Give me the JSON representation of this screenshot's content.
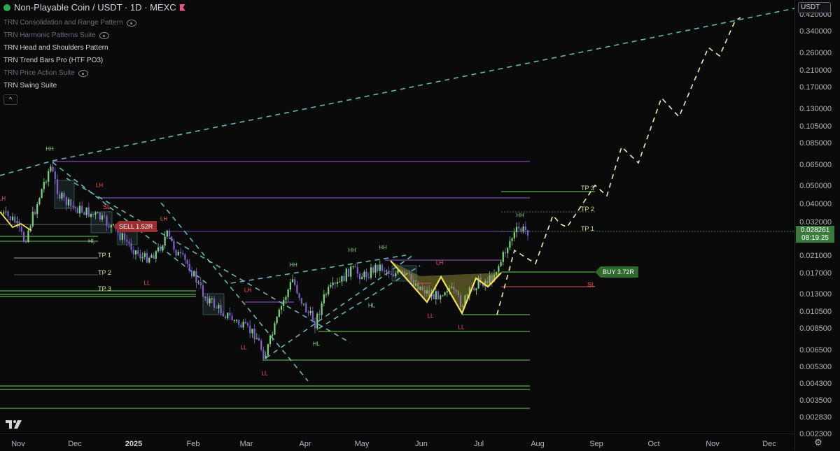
{
  "symbol": {
    "title": "Non-Playable Coin / USDT · 1D · MEXC",
    "status_color": "#2ca855"
  },
  "indicators": [
    {
      "label": "TRN Consolidation and Range Pattern",
      "hidden": true
    },
    {
      "label": "TRN Harmonic Patterns Suite",
      "hidden": true
    },
    {
      "label": "TRN Head and Shoulders Pattern",
      "hidden": false
    },
    {
      "label": "TRN Trend Bars Pro (HTF PO3)",
      "hidden": false
    },
    {
      "label": "TRN Price Action Suite",
      "hidden": true
    },
    {
      "label": "TRN Swing Suite",
      "hidden": false
    }
  ],
  "collapse_icon": "chevron-up-icon",
  "price_axis": {
    "currency": "USDT",
    "ticks": [
      "0.420000",
      "0.340000",
      "0.260000",
      "0.210000",
      "0.170000",
      "0.130000",
      "0.105000",
      "0.085000",
      "0.065000",
      "0.050000",
      "0.040000",
      "0.032000",
      "0.021000",
      "0.017000",
      "0.013000",
      "0.010500",
      "0.008500",
      "0.006500",
      "0.005300",
      "0.004300",
      "0.003500",
      "0.002830",
      "0.002300"
    ],
    "last_price": "0.028261",
    "countdown": "08:19:25",
    "last_price_color": "#3a7a3c"
  },
  "time_axis": {
    "labels": [
      {
        "text": "Nov",
        "bold": false
      },
      {
        "text": "Dec",
        "bold": false
      },
      {
        "text": "2025",
        "bold": true
      },
      {
        "text": "Feb",
        "bold": false
      },
      {
        "text": "Mar",
        "bold": false
      },
      {
        "text": "Apr",
        "bold": false
      },
      {
        "text": "May",
        "bold": false
      },
      {
        "text": "Jun",
        "bold": false
      },
      {
        "text": "Jul",
        "bold": false
      },
      {
        "text": "Aug",
        "bold": false
      },
      {
        "text": "Sep",
        "bold": false
      },
      {
        "text": "Oct",
        "bold": false
      },
      {
        "text": "Nov",
        "bold": false
      },
      {
        "text": "Dec",
        "bold": false
      }
    ]
  },
  "annotations": {
    "sell_badge": "SELL 1.52R",
    "buy_badge": "BUY 3.72R",
    "sell_targets": [
      "TP 1",
      "TP 2",
      "TP 3"
    ],
    "buy_targets": [
      "TP 1",
      "TP 2",
      "TP 3"
    ],
    "stop_loss": "SL",
    "swing_labels": [
      "HH",
      "LH",
      "SL",
      "LH",
      "HL",
      "LH",
      "LL",
      "LL",
      "LL",
      "HH",
      "HH",
      "HH",
      "LH",
      "HL",
      "HL",
      "LL",
      "LL",
      "HH",
      "LH"
    ]
  },
  "colors": {
    "background": "#0a0a0b",
    "bull_candle": "#7ed67a",
    "bear_candle": "#7b61c9",
    "trendline": "#6ec9c2",
    "projection": "#e6f0b4",
    "hs_pattern": "#f0e05a",
    "level_purple": "#9b59d6",
    "level_green": "#6bd15a",
    "sell_red": "#9a2f32",
    "buy_green": "#2e6b2c"
  }
}
